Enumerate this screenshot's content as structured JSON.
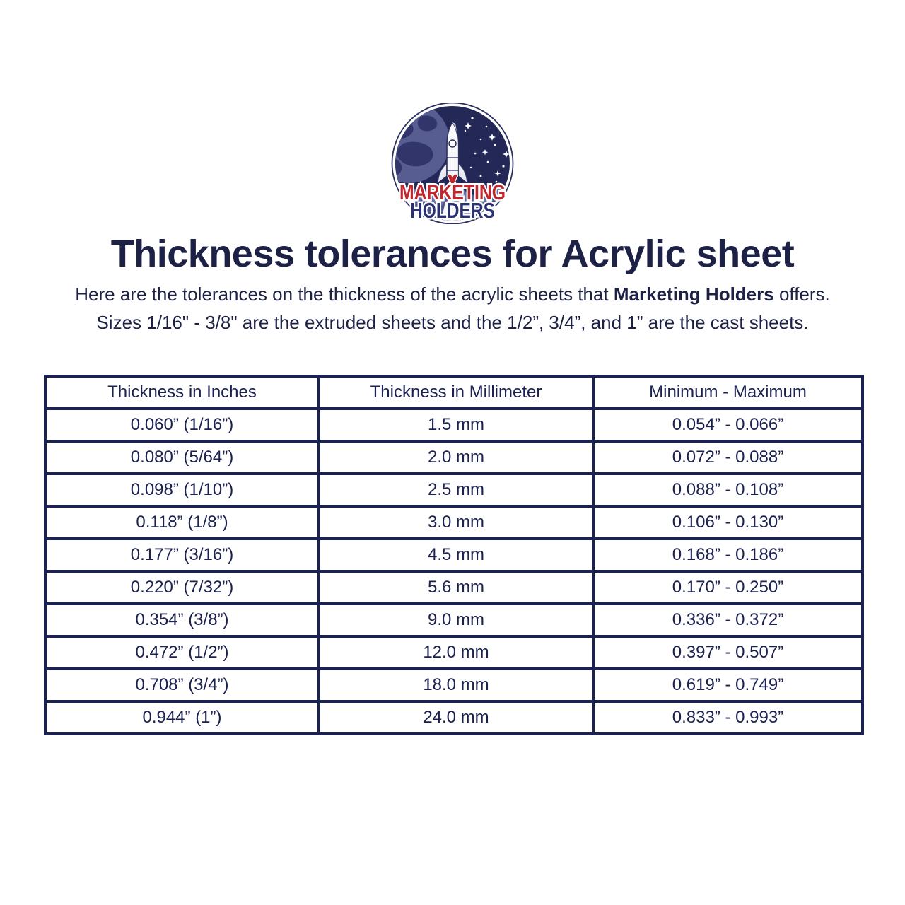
{
  "logo": {
    "line1": "MARKETING",
    "line2": "HOLDERS",
    "colors": {
      "space_navy": "#242857",
      "planet_blue": "#575c91",
      "continent_navy": "#313569",
      "cloud_dark": "#50558b",
      "cloud_light": "#6b70a5",
      "brand_red": "#c0272d",
      "brand_navy": "#2b3272"
    }
  },
  "header": {
    "title": "Thickness tolerances for Acrylic sheet",
    "subtitle_part1": "Here are the tolerances on the thickness of the acrylic sheets that ",
    "subtitle_bold": "Marketing Holders",
    "subtitle_part2": " offers.",
    "subtitle_line2": "Sizes 1/16\" - 3/8\" are the extruded sheets and the 1/2”, 3/4”, and 1” are the cast sheets."
  },
  "table": {
    "headers": [
      "Thickness in Inches",
      "Thickness in Millimeter",
      "Minimum - Maximum"
    ],
    "rows": [
      [
        "0.060” (1/16”)",
        "1.5 mm",
        "0.054” - 0.066”"
      ],
      [
        "0.080” (5/64”)",
        "2.0 mm",
        "0.072” - 0.088”"
      ],
      [
        "0.098” (1/10”)",
        "2.5 mm",
        "0.088” - 0.108”"
      ],
      [
        "0.118” (1/8”)",
        "3.0 mm",
        "0.106” - 0.130”"
      ],
      [
        "0.177” (3/16”)",
        "4.5 mm",
        "0.168” - 0.186”"
      ],
      [
        "0.220” (7/32”)",
        "5.6 mm",
        "0.170” - 0.250”"
      ],
      [
        "0.354” (3/8”)",
        "9.0 mm",
        "0.336” - 0.372”"
      ],
      [
        "0.472” (1/2”)",
        "12.0 mm",
        "0.397” - 0.507”"
      ],
      [
        "0.708” (3/4”)",
        "18.0 mm",
        "0.619” - 0.749”"
      ],
      [
        "0.944” (1”)",
        "24.0 mm",
        "0.833” - 0.993”"
      ]
    ]
  }
}
